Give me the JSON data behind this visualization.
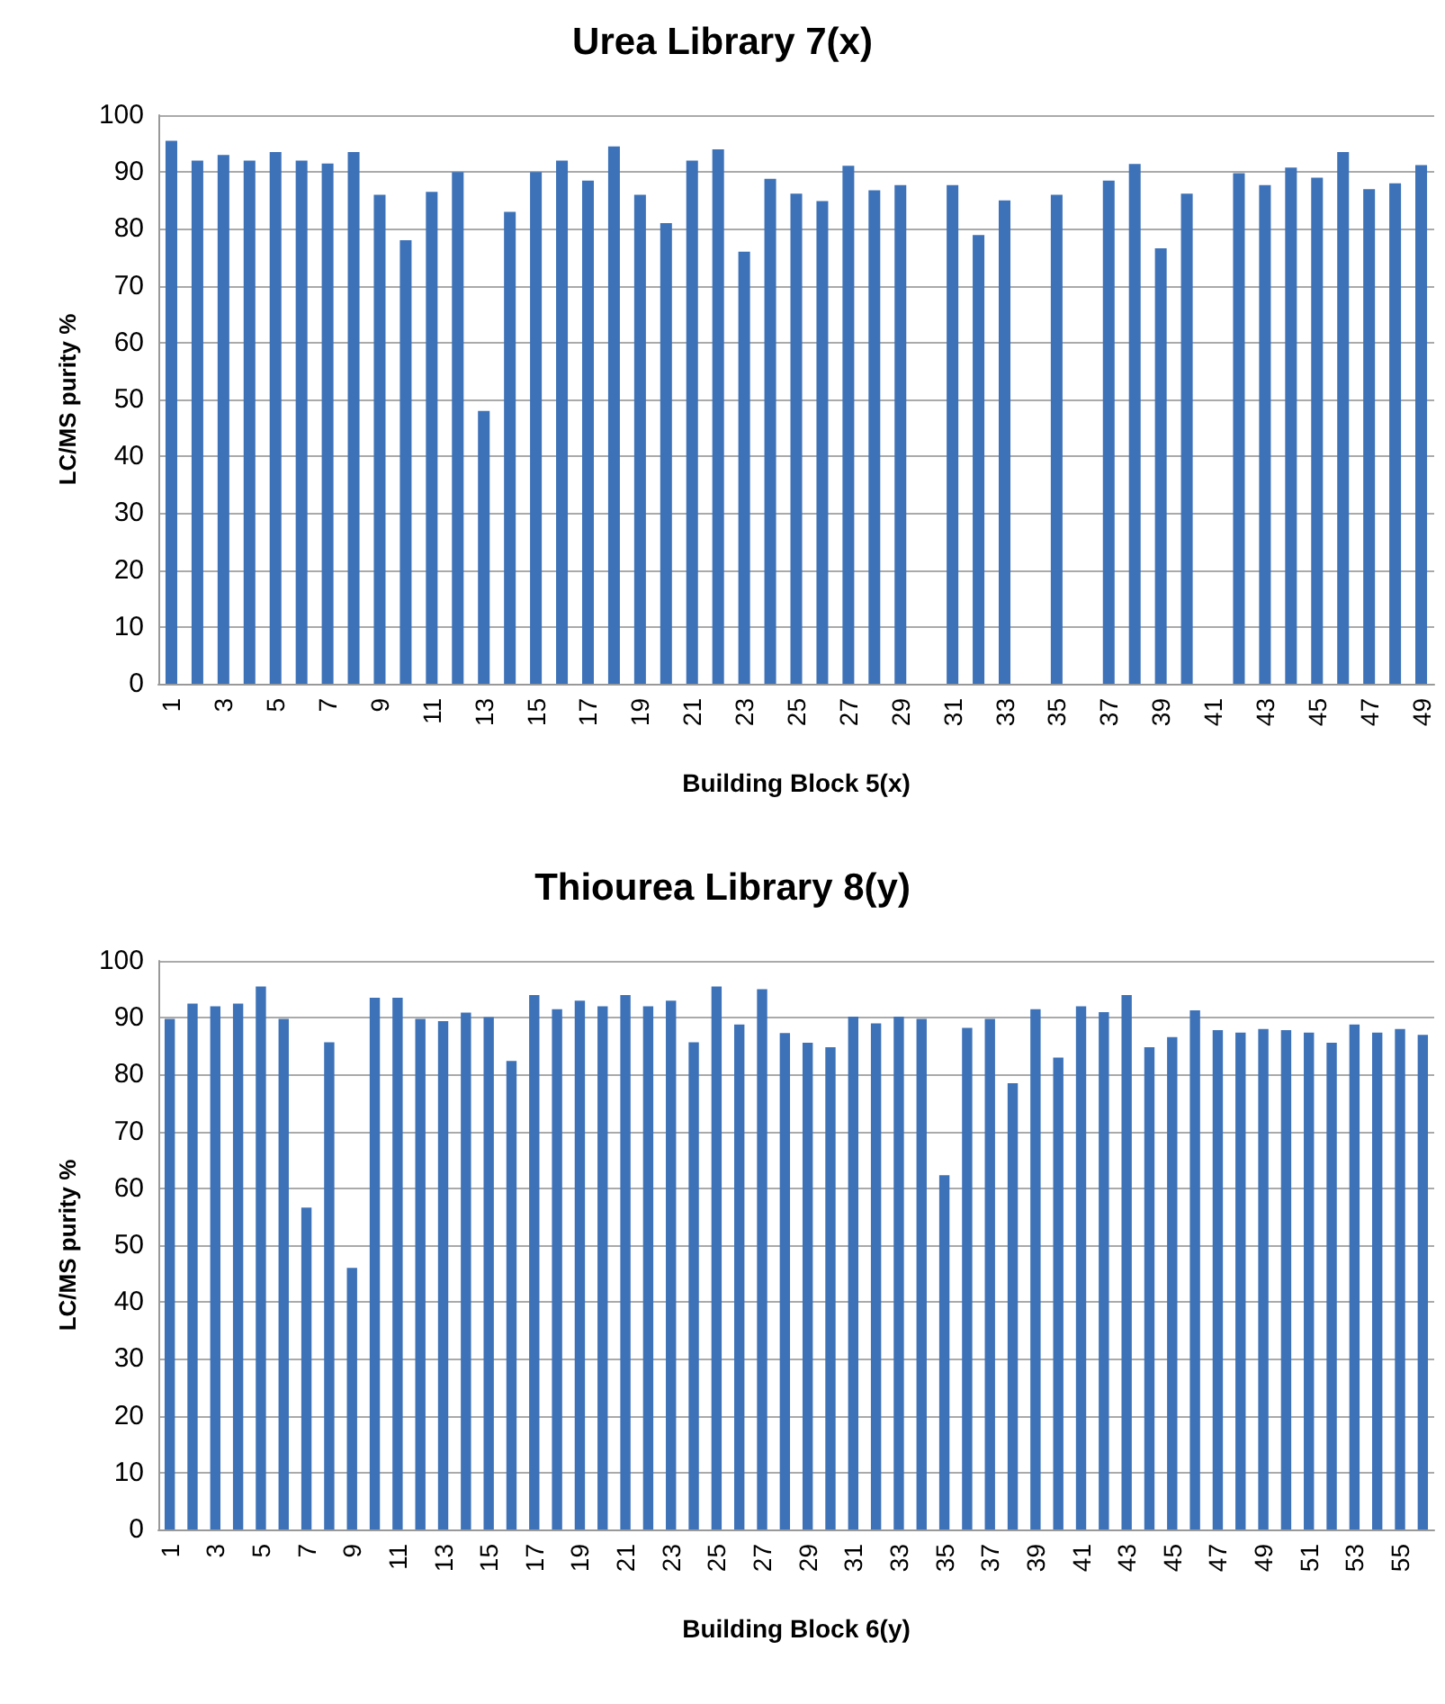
{
  "chart_data": [
    {
      "type": "bar",
      "title": "Urea Library 7(x)",
      "xlabel": "Building Block 5(x)",
      "ylabel": "LC/MS purity %",
      "categories": [
        "1",
        null,
        "3",
        null,
        "5",
        null,
        "7",
        null,
        "9",
        null,
        "11",
        null,
        "13",
        null,
        "15",
        null,
        "17",
        null,
        "19",
        null,
        "21",
        null,
        "23",
        null,
        "25",
        null,
        "27",
        null,
        "29",
        null,
        "31",
        null,
        "33",
        null,
        "35",
        null,
        "37",
        null,
        "39",
        null,
        "41",
        null,
        "43",
        null,
        "45",
        null,
        "47",
        null,
        "49"
      ],
      "values": [
        95.5,
        92,
        93,
        92,
        93.5,
        92,
        91.5,
        93.5,
        86,
        78,
        86.5,
        90,
        48,
        83,
        90,
        92,
        88.5,
        94.5,
        86,
        81,
        92,
        94,
        76,
        88.8,
        86.2,
        84.9,
        91.1,
        86.8,
        87.7,
        null,
        87.7,
        78.9,
        85,
        null,
        86,
        null,
        88.5,
        91.4,
        76.6,
        86.2,
        null,
        89.8,
        87.7,
        90.8,
        89,
        93.5,
        87,
        88,
        91.2
      ],
      "color": "#3d72b8",
      "ylim": [
        0,
        100
      ],
      "yticks": [
        0,
        10,
        20,
        30,
        40,
        50,
        60,
        70,
        80,
        90,
        100
      ],
      "grid": "y"
    },
    {
      "type": "bar",
      "title": "Thiourea Library 8(y)",
      "xlabel": "Building Block 6(y)",
      "ylabel": "LC/MS purity %",
      "categories": [
        "1",
        null,
        "3",
        null,
        "5",
        null,
        "7",
        null,
        "9",
        null,
        "11",
        null,
        "13",
        null,
        "15",
        null,
        "17",
        null,
        "19",
        null,
        "21",
        null,
        "23",
        null,
        "25",
        null,
        "27",
        null,
        "29",
        null,
        "31",
        null,
        "33",
        null,
        "35",
        null,
        "37",
        null,
        "39",
        null,
        "41",
        null,
        "43",
        null,
        "45",
        null,
        "47",
        null,
        "49",
        null,
        "51",
        null,
        "53",
        null,
        "55",
        null
      ],
      "values": [
        89.8,
        92.5,
        92,
        92.5,
        95.5,
        89.8,
        56.6,
        85.7,
        46,
        93.5,
        93.5,
        89.8,
        89.4,
        90.9,
        90.1,
        82.4,
        94,
        91.5,
        93,
        92,
        94,
        92,
        93,
        85.7,
        95.5,
        88.8,
        95,
        87.3,
        85.6,
        84.8,
        90.2,
        89,
        90.2,
        89.8,
        62.3,
        88.2,
        89.8,
        78.5,
        91.5,
        83,
        92,
        91,
        94,
        84.8,
        86.6,
        91.3,
        87.8,
        87.4,
        88,
        87.8,
        87.4,
        85.6,
        88.8,
        87.4,
        88,
        87
      ],
      "color": "#3d72b8",
      "ylim": [
        0,
        100
      ],
      "yticks": [
        0,
        10,
        20,
        30,
        40,
        50,
        60,
        70,
        80,
        90,
        100
      ],
      "grid": "y"
    }
  ]
}
